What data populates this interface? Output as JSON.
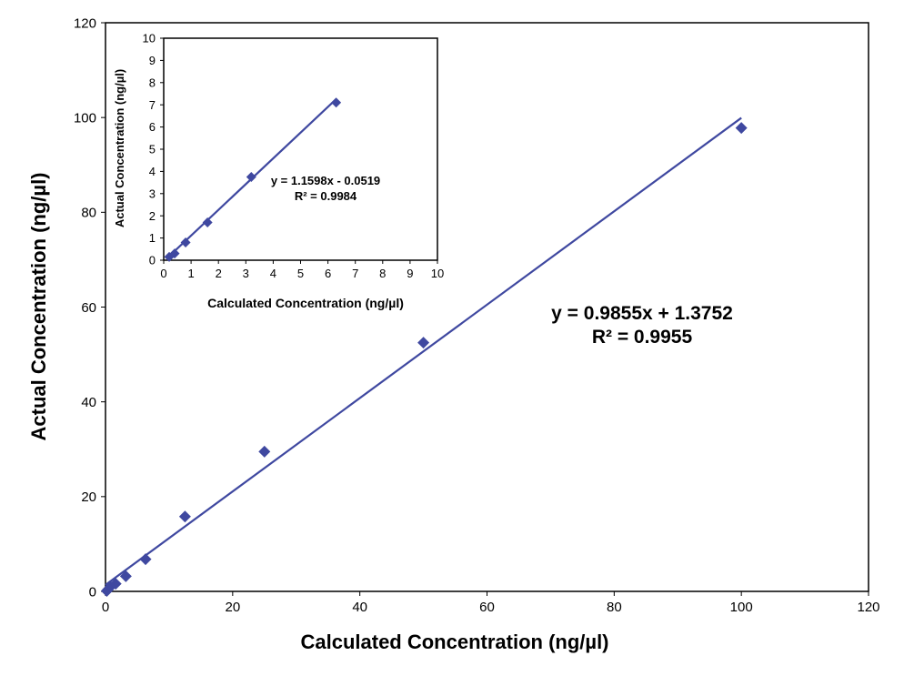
{
  "chart_data": [
    {
      "type": "scatter",
      "role": "main",
      "xlabel": "Calculated Concentration (ng/µl)",
      "ylabel": "Actual Concentration (ng/µl)",
      "xlim": [
        0,
        120
      ],
      "ylim": [
        0,
        120
      ],
      "xticks": [
        "0",
        "20",
        "40",
        "60",
        "80",
        "100",
        "120"
      ],
      "yticks": [
        "0",
        "20",
        "40",
        "60",
        "80",
        "100",
        "120"
      ],
      "grid": false,
      "legend": "none",
      "point_color": "#3F48A0",
      "line_color": "#3F48A0",
      "series": [
        {
          "x": [
            0.2,
            0.4,
            0.8,
            1.6,
            3.2,
            6.3,
            12.5,
            25,
            50,
            100
          ],
          "y": [
            0.1,
            0.4,
            1.0,
            1.6,
            3.2,
            6.8,
            15.8,
            29.5,
            52.5,
            97.8
          ]
        }
      ],
      "trendline": {
        "slope": 0.9855,
        "intercept": 1.3752,
        "x_range": [
          0,
          100
        ]
      },
      "annotation": {
        "equation": "y = 0.9855x + 1.3752",
        "r2": "R² = 0.9955"
      }
    },
    {
      "type": "scatter",
      "role": "inset",
      "xlabel": "Calculated Concentration (ng/µl)",
      "ylabel": "Actual Concentration (ng/µl)",
      "xlim": [
        0,
        10
      ],
      "ylim": [
        0,
        10
      ],
      "xticks": [
        "0",
        "1",
        "2",
        "3",
        "4",
        "5",
        "6",
        "7",
        "8",
        "9",
        "10"
      ],
      "yticks": [
        "0",
        "1",
        "2",
        "3",
        "4",
        "5",
        "6",
        "7",
        "8",
        "9",
        "10"
      ],
      "grid": false,
      "legend": "none",
      "point_color": "#3F48A0",
      "line_color": "#3F48A0",
      "series": [
        {
          "x": [
            0.2,
            0.4,
            0.8,
            1.6,
            3.2,
            6.3
          ],
          "y": [
            0.15,
            0.3,
            0.8,
            1.7,
            3.75,
            7.1
          ]
        }
      ],
      "trendline": {
        "slope": 1.1598,
        "intercept": -0.0519,
        "x_range": [
          0.2,
          6.3
        ]
      },
      "annotation": {
        "equation": "y = 1.1598x - 0.0519",
        "r2": "R² = 0.9984"
      }
    }
  ]
}
